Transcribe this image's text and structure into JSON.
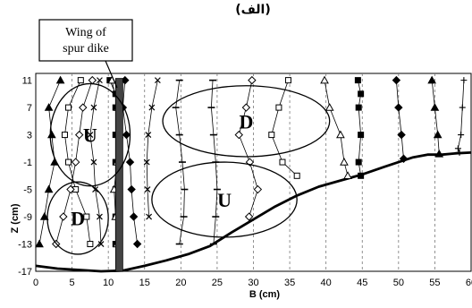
{
  "header_label": "(الف)",
  "callout": {
    "line1": "Wing of",
    "line2": "spur dike"
  },
  "chart_data": {
    "type": "line",
    "title": "",
    "xlabel": "B (cm)",
    "ylabel": "Z (cm)",
    "xlim": [
      0,
      60
    ],
    "ylim": [
      -17,
      12
    ],
    "xticks": [
      0,
      5,
      10,
      15,
      20,
      25,
      30,
      35,
      40,
      45,
      50,
      55,
      60
    ],
    "yticks": [
      -17,
      -13,
      -9,
      -5,
      -1,
      3,
      7,
      11
    ],
    "grid": "vertical dashed",
    "spur_dike_x": 11.5,
    "bed_profile": [
      [
        0,
        -16.2
      ],
      [
        3,
        -16.6
      ],
      [
        6,
        -16.8
      ],
      [
        9,
        -17
      ],
      [
        12,
        -16.9
      ],
      [
        15,
        -16.2
      ],
      [
        18,
        -15.4
      ],
      [
        21,
        -14.5
      ],
      [
        24,
        -13.3
      ],
      [
        27,
        -11.3
      ],
      [
        30,
        -9.4
      ],
      [
        33,
        -7.5
      ],
      [
        36,
        -5.9
      ],
      [
        39,
        -4.6
      ],
      [
        42,
        -3.7
      ],
      [
        44,
        -3.1
      ],
      [
        45,
        -2.8
      ],
      [
        48,
        -1.7
      ],
      [
        50,
        -1
      ],
      [
        52,
        -0.3
      ],
      [
        54,
        0.1
      ],
      [
        56,
        0.1
      ],
      [
        58,
        0.3
      ],
      [
        60,
        0.4
      ]
    ],
    "profiles": [
      {
        "marker": "triangle-filled",
        "points": [
          [
            3.4,
            11
          ],
          [
            1.8,
            7
          ],
          [
            2.2,
            3
          ],
          [
            2.6,
            -1
          ],
          [
            1.8,
            -5
          ],
          [
            1.2,
            -9
          ],
          [
            0.5,
            -13
          ]
        ]
      },
      {
        "marker": "square",
        "points": [
          [
            6.2,
            11
          ],
          [
            4.5,
            7
          ],
          [
            4,
            3
          ],
          [
            4.5,
            -1
          ],
          [
            5.5,
            -5
          ],
          [
            7,
            -9
          ],
          [
            7.5,
            -13
          ]
        ]
      },
      {
        "marker": "diamond",
        "points": [
          [
            7.8,
            11
          ],
          [
            6.5,
            7
          ],
          [
            6,
            3
          ],
          [
            5.5,
            -1
          ],
          [
            4.8,
            -5
          ],
          [
            3.8,
            -9
          ],
          [
            2.8,
            -13
          ]
        ]
      },
      {
        "marker": "x",
        "points": [
          [
            8.8,
            11
          ],
          [
            8,
            7
          ],
          [
            7.5,
            3
          ],
          [
            8,
            -1
          ],
          [
            8.2,
            -5
          ],
          [
            8.8,
            -9
          ],
          [
            9,
            -13
          ]
        ]
      },
      {
        "marker": "square-filled",
        "points": [
          [
            10.2,
            11
          ],
          [
            11,
            9
          ],
          [
            11,
            7
          ],
          [
            11,
            3
          ],
          [
            11,
            -1
          ],
          [
            11,
            -5
          ],
          [
            11,
            -9
          ],
          [
            11,
            -13
          ]
        ]
      },
      {
        "marker": "triangle",
        "points": [
          [
            10.5,
            11
          ],
          [
            11.3,
            7
          ],
          [
            11.5,
            3
          ],
          [
            11.2,
            -1
          ],
          [
            10.8,
            -5
          ],
          [
            11,
            -9
          ],
          [
            11.2,
            -13
          ]
        ]
      },
      {
        "marker": "circle-filled",
        "points": [
          [
            12.3,
            11
          ],
          [
            12,
            7
          ],
          [
            12.5,
            3
          ],
          [
            13,
            -1
          ],
          [
            13.2,
            -5
          ],
          [
            13.5,
            -9
          ],
          [
            14,
            -13
          ]
        ]
      },
      {
        "marker": "x",
        "points": [
          [
            16.8,
            11
          ],
          [
            16,
            7
          ],
          [
            15.5,
            3
          ],
          [
            15.3,
            -1
          ],
          [
            15.4,
            -5
          ],
          [
            15.6,
            -9
          ]
        ]
      },
      {
        "marker": "dash",
        "points": [
          [
            19.8,
            11
          ],
          [
            19.3,
            7
          ],
          [
            19.8,
            3
          ],
          [
            20.2,
            -1
          ],
          [
            20.5,
            -5
          ],
          [
            20.4,
            -9
          ],
          [
            19.8,
            -13
          ]
        ]
      },
      {
        "marker": "dash",
        "points": [
          [
            24.4,
            11
          ],
          [
            24.2,
            7
          ],
          [
            24.5,
            3
          ],
          [
            24.8,
            -1
          ],
          [
            25,
            -5
          ],
          [
            24.8,
            -9
          ],
          [
            24.5,
            -13
          ]
        ]
      },
      {
        "marker": "diamond",
        "points": [
          [
            29.8,
            11
          ],
          [
            29,
            7
          ],
          [
            28,
            3
          ],
          [
            29.5,
            -1
          ],
          [
            30.6,
            -5
          ],
          [
            29.4,
            -9
          ]
        ]
      },
      {
        "marker": "square",
        "points": [
          [
            34.8,
            11
          ],
          [
            33.5,
            7
          ],
          [
            32.5,
            3
          ],
          [
            34,
            -1
          ],
          [
            36,
            -3
          ]
        ]
      },
      {
        "marker": "triangle",
        "points": [
          [
            39.8,
            11
          ],
          [
            40.5,
            7
          ],
          [
            42,
            3
          ],
          [
            42.5,
            -1
          ],
          [
            43,
            -3
          ]
        ]
      },
      {
        "marker": "square-filled",
        "points": [
          [
            44.4,
            11
          ],
          [
            44.8,
            9
          ],
          [
            44.5,
            7
          ],
          [
            44.8,
            3
          ],
          [
            44.5,
            -1
          ],
          [
            44.8,
            -3
          ]
        ]
      },
      {
        "marker": "circle-filled",
        "points": [
          [
            49.7,
            11
          ],
          [
            50,
            7
          ],
          [
            50.4,
            3
          ],
          [
            50.7,
            -0.5
          ]
        ]
      },
      {
        "marker": "triangle-filled",
        "points": [
          [
            54.6,
            11
          ],
          [
            55,
            7
          ],
          [
            55.4,
            3
          ],
          [
            55.6,
            0.2
          ]
        ]
      },
      {
        "marker": "plus",
        "points": [
          [
            59,
            11
          ],
          [
            58.8,
            7
          ],
          [
            58.6,
            3
          ],
          [
            58.2,
            1
          ],
          [
            58.4,
            0.4
          ]
        ]
      }
    ],
    "regions": [
      {
        "label": "U",
        "cx": 7.5,
        "cy": 3,
        "rx": 5.5,
        "ry": 7.5
      },
      {
        "label": "D",
        "cx": 5.8,
        "cy": -9.2,
        "rx": 4.2,
        "ry": 5.3
      },
      {
        "label": "D",
        "cx": 29,
        "cy": 5,
        "rx": 11.5,
        "ry": 5.2
      },
      {
        "label": "U",
        "cx": 26,
        "cy": -6.5,
        "rx": 10,
        "ry": 5.5
      }
    ]
  }
}
